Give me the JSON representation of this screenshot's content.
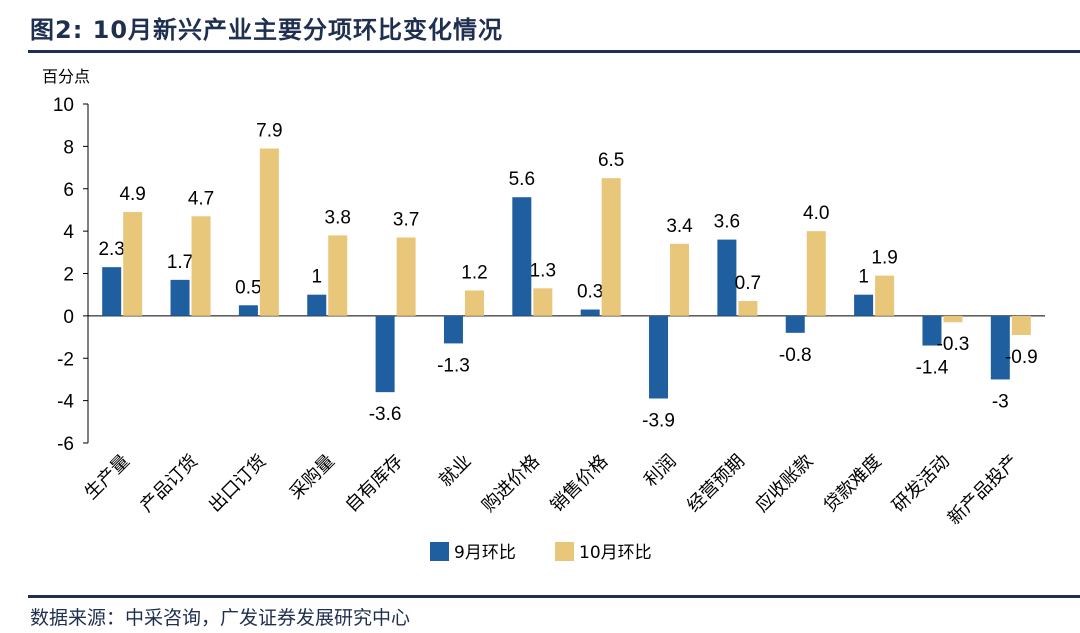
{
  "title": "图2:  10月新兴产业主要分项环比变化情况",
  "source": "数据来源：中采咨询，广发证券发展研究中心",
  "chart_data": {
    "type": "bar",
    "ylabel": "百分点",
    "ylim": [
      -6,
      10
    ],
    "yticks": [
      10,
      8,
      6,
      4,
      2,
      0,
      -2,
      -4,
      -6
    ],
    "categories": [
      "生产量",
      "产品订货",
      "出口订货",
      "采购量",
      "自有库存",
      "就业",
      "购进价格",
      "销售价格",
      "利润",
      "经营预期",
      "应收账款",
      "贷款难度",
      "研发活动",
      "新产品投产"
    ],
    "series": [
      {
        "name": "9月环比",
        "color": "#1f5f9f",
        "values": [
          2.3,
          1.7,
          0.5,
          1,
          -3.6,
          -1.3,
          5.6,
          0.3,
          -3.9,
          3.6,
          -0.8,
          1,
          -1.4,
          -3
        ],
        "labels": [
          "2.3",
          "1.7",
          "0.5",
          "1",
          "-3.6",
          "-1.3",
          "5.6",
          "0.3",
          "-3.9",
          "3.6",
          "-0.8",
          "1",
          "-1.4",
          "-3"
        ]
      },
      {
        "name": "10月环比",
        "color": "#e8c77a",
        "values": [
          4.9,
          4.7,
          7.9,
          3.8,
          3.7,
          1.2,
          1.3,
          6.5,
          3.4,
          0.7,
          4.0,
          1.9,
          -0.3,
          -0.9
        ],
        "labels": [
          "4.9",
          "4.7",
          "7.9",
          "3.8",
          "3.7",
          "1.2",
          "1.3",
          "6.5",
          "3.4",
          "0.7",
          "4.0",
          "1.9",
          "-0.3",
          "-0.9"
        ]
      }
    ]
  }
}
